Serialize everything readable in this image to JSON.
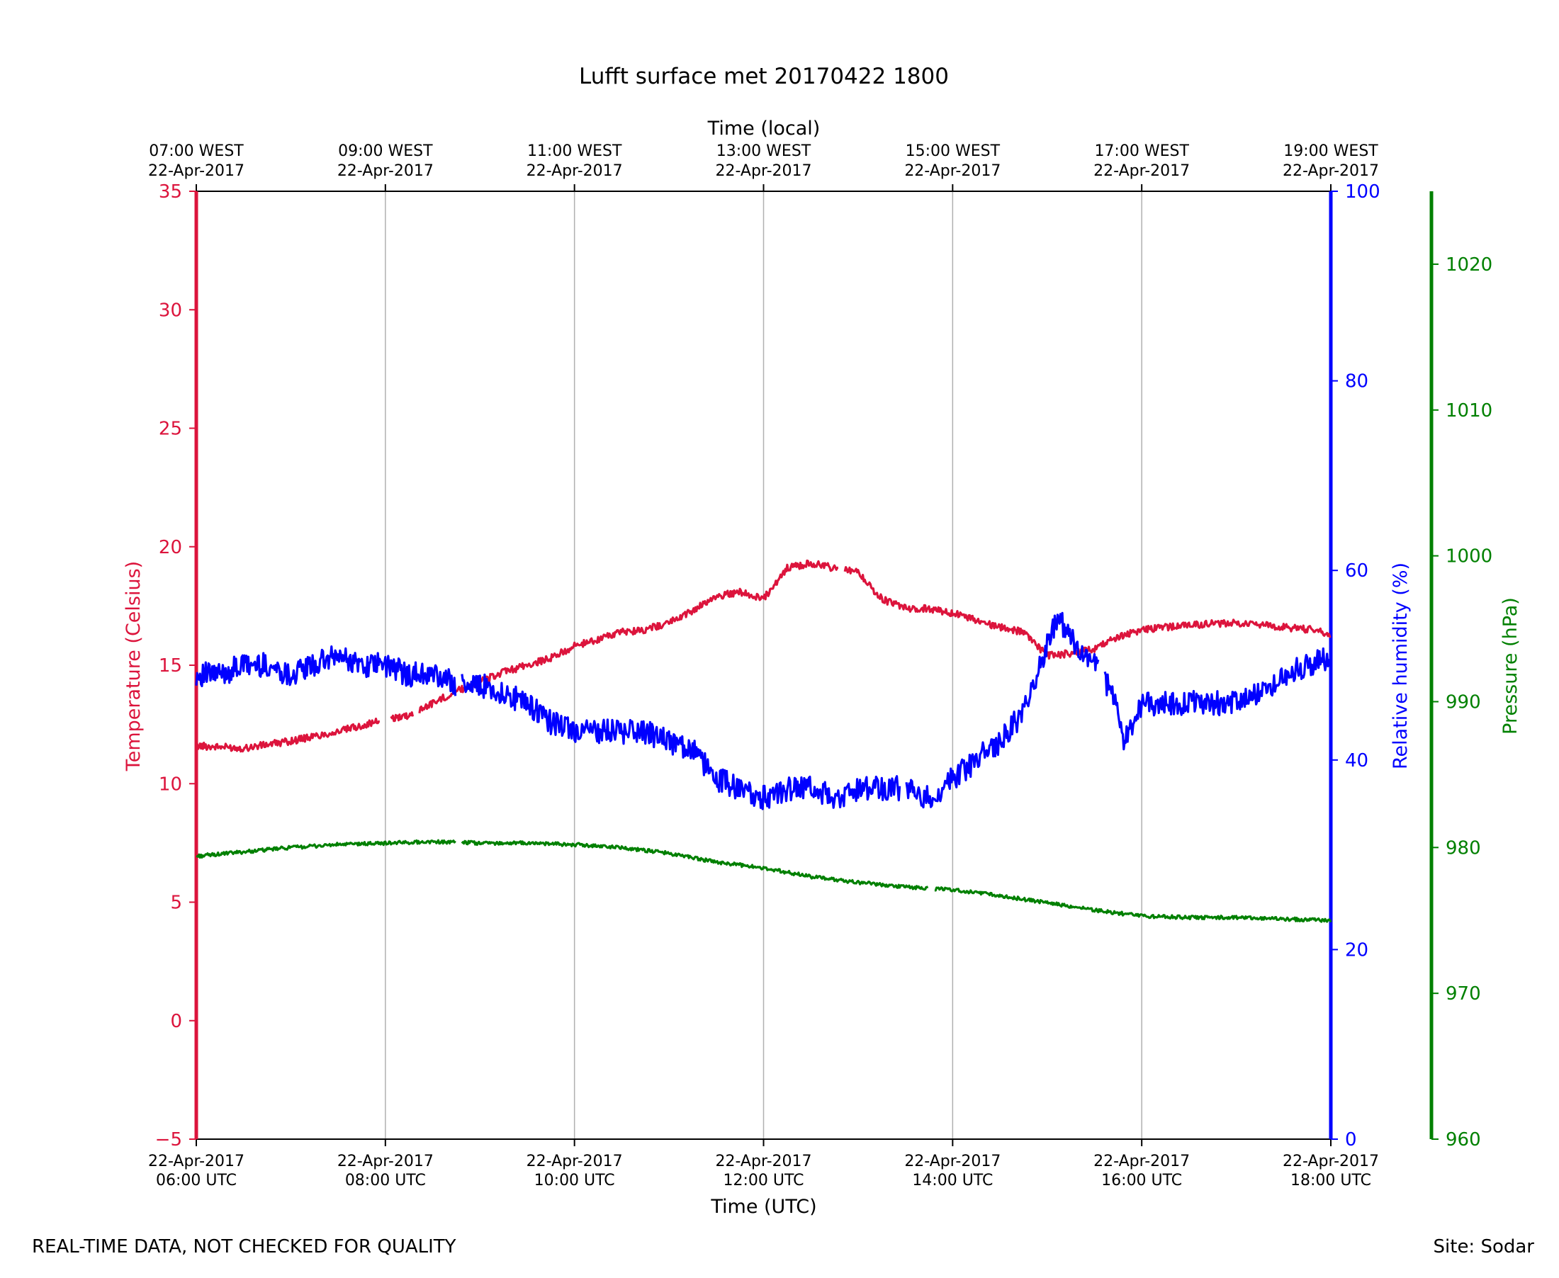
{
  "chart_data": {
    "type": "line",
    "title": "Lufft surface met 20170422 1800",
    "x_unit": "hours UTC",
    "xlim": [
      6,
      18
    ],
    "bottom_axis": {
      "label": "Time (UTC)",
      "ticks": [
        {
          "x": 6,
          "line1": "22-Apr-2017",
          "line2": "06:00 UTC"
        },
        {
          "x": 8,
          "line1": "22-Apr-2017",
          "line2": "08:00 UTC"
        },
        {
          "x": 10,
          "line1": "22-Apr-2017",
          "line2": "10:00 UTC"
        },
        {
          "x": 12,
          "line1": "22-Apr-2017",
          "line2": "12:00 UTC"
        },
        {
          "x": 14,
          "line1": "22-Apr-2017",
          "line2": "14:00 UTC"
        },
        {
          "x": 16,
          "line1": "22-Apr-2017",
          "line2": "16:00 UTC"
        },
        {
          "x": 18,
          "line1": "22-Apr-2017",
          "line2": "18:00 UTC"
        }
      ]
    },
    "top_axis": {
      "label": "Time (local)",
      "ticks": [
        {
          "x": 6,
          "line1": "07:00 WEST",
          "line2": "22-Apr-2017"
        },
        {
          "x": 8,
          "line1": "09:00 WEST",
          "line2": "22-Apr-2017"
        },
        {
          "x": 10,
          "line1": "11:00 WEST",
          "line2": "22-Apr-2017"
        },
        {
          "x": 12,
          "line1": "13:00 WEST",
          "line2": "22-Apr-2017"
        },
        {
          "x": 14,
          "line1": "15:00 WEST",
          "line2": "22-Apr-2017"
        },
        {
          "x": 16,
          "line1": "17:00 WEST",
          "line2": "22-Apr-2017"
        },
        {
          "x": 18,
          "line1": "19:00 WEST",
          "line2": "22-Apr-2017"
        }
      ]
    },
    "grid": "vertical lines at major x ticks",
    "y_axes": [
      {
        "id": "temp",
        "label": "Temperature (Celsius)",
        "side": "left",
        "color": "#dc143c",
        "ylim": [
          -5,
          35
        ],
        "ticks": [
          "−5",
          "0",
          "5",
          "10",
          "15",
          "20",
          "25",
          "30",
          "35"
        ],
        "tick_values": [
          -5,
          0,
          5,
          10,
          15,
          20,
          25,
          30,
          35
        ]
      },
      {
        "id": "rh",
        "label": "Relative humidity (%)",
        "side": "right",
        "color": "#0000ff",
        "ylim": [
          0,
          100
        ],
        "ticks": [
          "0",
          "20",
          "40",
          "60",
          "80",
          "100"
        ],
        "tick_values": [
          0,
          20,
          40,
          60,
          80,
          100
        ]
      },
      {
        "id": "pres",
        "label": "Pressure (hPa)",
        "side": "right-outer",
        "color": "#008000",
        "ylim": [
          960,
          1025
        ],
        "ticks": [
          "960",
          "970",
          "980",
          "990",
          "1000",
          "1010",
          "1020"
        ],
        "tick_values": [
          960,
          970,
          980,
          990,
          1000,
          1010,
          1020
        ]
      }
    ],
    "series": [
      {
        "name": "Temperature",
        "axis": "temp",
        "color": "#dc143c",
        "x": [
          6.0,
          6.5,
          7.0,
          7.5,
          8.0,
          8.25,
          8.5,
          8.75,
          9.0,
          9.25,
          9.5,
          9.75,
          10.0,
          10.25,
          10.5,
          10.75,
          11.0,
          11.25,
          11.5,
          11.75,
          12.0,
          12.25,
          12.5,
          12.75,
          13.0,
          13.25,
          13.5,
          13.75,
          14.0,
          14.25,
          14.5,
          14.75,
          15.0,
          15.25,
          15.5,
          15.75,
          16.0,
          16.5,
          17.0,
          17.5,
          17.8,
          18.0
        ],
        "y": [
          11.6,
          11.5,
          11.8,
          12.2,
          12.7,
          12.9,
          13.4,
          13.9,
          14.3,
          14.7,
          15.0,
          15.3,
          15.8,
          16.1,
          16.4,
          16.5,
          16.8,
          17.3,
          17.9,
          18.1,
          17.8,
          19.1,
          19.3,
          19.1,
          18.9,
          17.8,
          17.4,
          17.4,
          17.2,
          16.9,
          16.6,
          16.4,
          15.4,
          15.5,
          15.7,
          16.2,
          16.5,
          16.7,
          16.8,
          16.6,
          16.5,
          16.3
        ],
        "gaps": [
          [
            7.95,
            8.05
          ],
          [
            8.3,
            8.35
          ],
          [
            12.8,
            12.85
          ]
        ]
      },
      {
        "name": "Relative humidity",
        "axis": "rh",
        "color": "#0000ff",
        "x": [
          6.0,
          6.25,
          6.5,
          6.75,
          7.0,
          7.25,
          7.5,
          7.75,
          8.0,
          8.25,
          8.5,
          8.75,
          9.0,
          9.25,
          9.5,
          9.75,
          10.0,
          10.25,
          10.5,
          10.75,
          11.0,
          11.25,
          11.5,
          11.75,
          12.0,
          12.25,
          12.5,
          12.75,
          13.0,
          13.25,
          13.5,
          13.75,
          14.0,
          14.25,
          14.5,
          14.75,
          15.0,
          15.1,
          15.2,
          15.35,
          15.5,
          15.7,
          15.8,
          15.9,
          16.0,
          16.25,
          16.5,
          16.75,
          17.0,
          17.25,
          17.5,
          17.75,
          18.0
        ],
        "y": [
          49,
          49,
          50,
          50,
          49,
          50,
          51,
          50,
          50,
          49,
          49,
          48,
          48,
          47,
          46,
          44,
          43,
          43,
          43,
          43,
          42,
          41,
          38,
          37,
          36,
          37,
          37,
          36,
          37,
          37,
          37,
          36,
          38,
          40,
          42,
          45,
          52,
          55,
          54,
          51,
          50,
          47,
          42,
          44,
          46,
          46,
          46,
          46,
          46,
          47,
          49,
          50,
          51
        ],
        "gaps": [
          [
            8.75,
            8.8
          ],
          [
            13.45,
            13.5
          ],
          [
            15.55,
            15.6
          ]
        ]
      },
      {
        "name": "Pressure",
        "axis": "pres",
        "color": "#008000",
        "x": [
          6.0,
          6.5,
          7.0,
          7.5,
          8.0,
          8.5,
          9.0,
          9.5,
          10.0,
          10.5,
          11.0,
          11.5,
          12.0,
          12.5,
          13.0,
          13.5,
          14.0,
          14.5,
          15.0,
          15.5,
          16.0,
          16.5,
          17.0,
          17.5,
          18.0
        ],
        "y": [
          979.4,
          979.7,
          980.0,
          980.2,
          980.3,
          980.4,
          980.3,
          980.3,
          980.2,
          980.0,
          979.6,
          979.0,
          978.6,
          978.0,
          977.6,
          977.3,
          977.1,
          976.7,
          976.2,
          975.7,
          975.3,
          975.2,
          975.2,
          975.1,
          975.0
        ],
        "gaps": [
          [
            8.75,
            8.8
          ],
          [
            13.75,
            13.8
          ]
        ]
      }
    ]
  },
  "footer": {
    "left_note": "REAL-TIME DATA, NOT CHECKED FOR QUALITY",
    "right_note": "Site: Sodar"
  }
}
